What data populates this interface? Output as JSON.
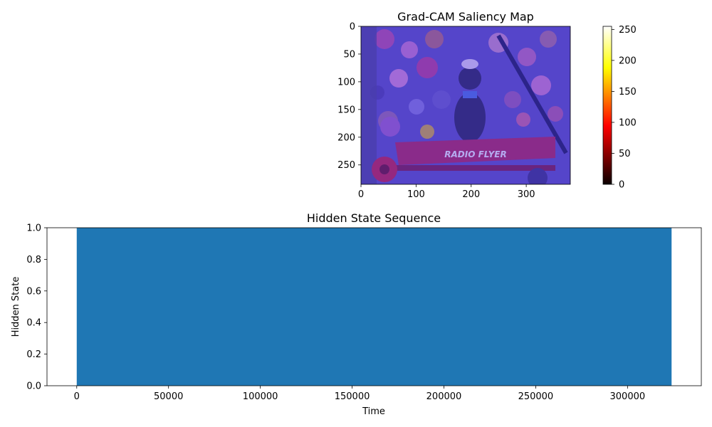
{
  "figure": {
    "background": "#ffffff"
  },
  "chart_data": [
    {
      "type": "heatmap",
      "title": "Grad-CAM Saliency Map",
      "xlabel": "",
      "ylabel": "",
      "image_width": 380,
      "image_height": 285,
      "xlim": [
        0,
        380
      ],
      "ylim": [
        285,
        0
      ],
      "x_ticks": [
        0,
        100,
        200,
        300
      ],
      "y_ticks": [
        0,
        50,
        100,
        150,
        200,
        250
      ],
      "colorbar": {
        "colormap": "hot",
        "range": [
          0,
          255
        ],
        "ticks": [
          0,
          50,
          100,
          150,
          200,
          250
        ]
      },
      "image_text": "RADIO FLYER",
      "overlay_color": "#4b3cf0"
    },
    {
      "type": "area",
      "title": "Hidden State Sequence",
      "xlabel": "Time",
      "ylabel": "Hidden State",
      "xlim": [
        -16200,
        340200
      ],
      "ylim": [
        0,
        1
      ],
      "x_ticks": [
        0,
        50000,
        100000,
        150000,
        200000,
        250000,
        300000
      ],
      "y_ticks": [
        0.0,
        0.2,
        0.4,
        0.6,
        0.8,
        1.0
      ],
      "y_tick_labels": [
        "0.0",
        "0.2",
        "0.4",
        "0.6",
        "0.8",
        "1.0"
      ],
      "series": [
        {
          "x": [
            0,
            324000
          ],
          "values": [
            1,
            1
          ],
          "color": "#1f77b4"
        }
      ]
    }
  ]
}
